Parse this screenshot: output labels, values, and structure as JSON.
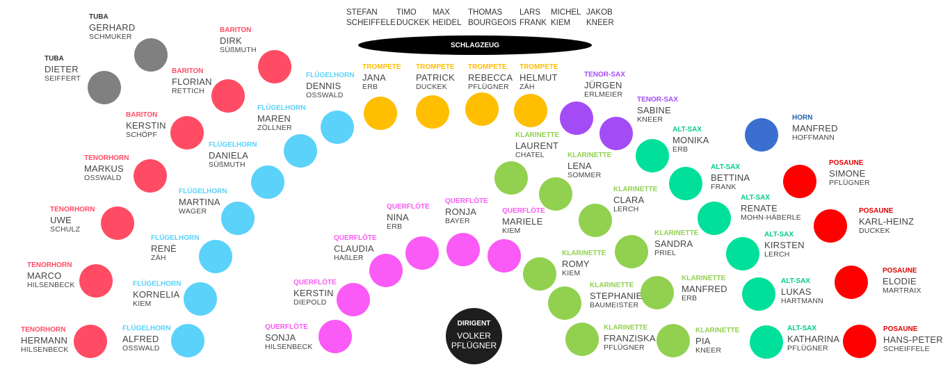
{
  "colors": {
    "tuba": "#808080",
    "bariton": "#ff4c64",
    "tenorhorn": "#ff4c64",
    "fluegelhorn": "#5ad2fa",
    "trompete": "#ffbe00",
    "tenorsax": "#a34cf5",
    "altsax": "#00e09a",
    "klarinette": "#92d050",
    "querfloete": "#fa5af5",
    "horn": "#3a6fd0",
    "posaune": "#ff0000",
    "bariton_text": "#ff4c64",
    "tenorhorn_text": "#ff4c64",
    "fluegelhorn_text": "#5ad2fa",
    "trompete_text": "#ffbe00",
    "tenorsax_text": "#a34cf5",
    "altsax_text": "#00cc8a",
    "klarinette_text": "#92d050",
    "querfloete_text": "#fa5af5",
    "horn_text": "#1f5fb0",
    "posaune_text": "#e00000",
    "tuba_text": "#333333"
  },
  "drums": {
    "label": "SCHLAGZEUG",
    "players": [
      {
        "first": "STEFAN",
        "last": "SCHEIFFELE"
      },
      {
        "first": "TIMO",
        "last": "DUCKEK"
      },
      {
        "first": "MAX",
        "last": "HEIDEL"
      },
      {
        "first": "THOMAS",
        "last": "BOURGEOIS"
      },
      {
        "first": "LARS",
        "last": "FRANK"
      },
      {
        "first": "MICHEL",
        "last": "KIEM"
      },
      {
        "first": "JAKOB",
        "last": "KNEER"
      }
    ]
  },
  "conductor": {
    "role": "DIRIGENT",
    "first": "VOLKER",
    "last": "PFLÜGNER"
  },
  "members": [
    {
      "instrument": "TUBA",
      "first": "GERHARD",
      "last": "SCHMUKER",
      "group": "tuba"
    },
    {
      "instrument": "TUBA",
      "first": "DIETER",
      "last": "SEIFFERT",
      "group": "tuba"
    },
    {
      "instrument": "BARITON",
      "first": "DIRK",
      "last": "SÜßMUTH",
      "group": "bariton"
    },
    {
      "instrument": "BARITON",
      "first": "FLORIAN",
      "last": "RETTICH",
      "group": "bariton"
    },
    {
      "instrument": "BARITON",
      "first": "KERSTIN",
      "last": "SCHÖPF",
      "group": "bariton"
    },
    {
      "instrument": "TENORHORN",
      "first": "MARKUS",
      "last": "OSSWALD",
      "group": "tenorhorn"
    },
    {
      "instrument": "TENORHORN",
      "first": "UWE",
      "last": "SCHULZ",
      "group": "tenorhorn"
    },
    {
      "instrument": "TENORHORN",
      "first": "MARCO",
      "last": "HILSENBECK",
      "group": "tenorhorn"
    },
    {
      "instrument": "TENORHORN",
      "first": "HERMANN",
      "last": "HILSENBECK",
      "group": "tenorhorn"
    },
    {
      "instrument": "FLÜGELHORN",
      "first": "DENNIS",
      "last": "OSSWALD",
      "group": "fluegelhorn"
    },
    {
      "instrument": "FLÜGELHORN",
      "first": "MAREN",
      "last": "ZÖLLNER",
      "group": "fluegelhorn"
    },
    {
      "instrument": "FLÜGELHORN",
      "first": "DANIELA",
      "last": "SÜßMUTH",
      "group": "fluegelhorn"
    },
    {
      "instrument": "FLÜGELHORN",
      "first": "MARTINA",
      "last": "WAGER",
      "group": "fluegelhorn"
    },
    {
      "instrument": "FLÜGELHORN",
      "first": "RENÈ",
      "last": "ZÄH",
      "group": "fluegelhorn"
    },
    {
      "instrument": "FLÜGELHORN",
      "first": "KORNELIA",
      "last": "KIEM",
      "group": "fluegelhorn"
    },
    {
      "instrument": "FLÜGELHORN",
      "first": "ALFRED",
      "last": "OSSWALD",
      "group": "fluegelhorn"
    },
    {
      "instrument": "TROMPETE",
      "first": "JANA",
      "last": "ERB",
      "group": "trompete"
    },
    {
      "instrument": "TROMPETE",
      "first": "PATRICK",
      "last": "DUCKEK",
      "group": "trompete"
    },
    {
      "instrument": "TROMPETE",
      "first": "REBECCA",
      "last": "PFLÜGNER",
      "group": "trompete"
    },
    {
      "instrument": "TROMPETE",
      "first": "HELMUT",
      "last": "ZÄH",
      "group": "trompete"
    },
    {
      "instrument": "TENOR-SAX",
      "first": "JÜRGEN",
      "last": "ERLMEIER",
      "group": "tenorsax"
    },
    {
      "instrument": "TENOR-SAX",
      "first": "SABINE",
      "last": "KNEER",
      "group": "tenorsax"
    },
    {
      "instrument": "ALT-SAX",
      "first": "MONIKA",
      "last": "ERB",
      "group": "altsax"
    },
    {
      "instrument": "ALT-SAX",
      "first": "BETTINA",
      "last": "FRANK",
      "group": "altsax"
    },
    {
      "instrument": "ALT-SAX",
      "first": "RENATE",
      "last": "MOHN-HÄBERLE",
      "group": "altsax"
    },
    {
      "instrument": "ALT-SAX",
      "first": "KIRSTEN",
      "last": "LERCH",
      "group": "altsax"
    },
    {
      "instrument": "ALT-SAX",
      "first": "LUKAS",
      "last": "HARTMANN",
      "group": "altsax"
    },
    {
      "instrument": "ALT-SAX",
      "first": "KATHARINA",
      "last": "PFLÜGNER",
      "group": "altsax"
    },
    {
      "instrument": "HORN",
      "first": "MANFRED",
      "last": "HOFFMANN",
      "group": "horn"
    },
    {
      "instrument": "POSAUNE",
      "first": "SIMONE",
      "last": "PFLÜGNER",
      "group": "posaune"
    },
    {
      "instrument": "POSAUNE",
      "first": "KARL-HEINZ",
      "last": "DUCKEK",
      "group": "posaune"
    },
    {
      "instrument": "POSAUNE",
      "first": "ELODIE",
      "last": "MARTRAIX",
      "group": "posaune"
    },
    {
      "instrument": "POSAUNE",
      "first": "HANS-PETER",
      "last": "SCHEIFFELE",
      "group": "posaune"
    },
    {
      "instrument": "KLARINETTE",
      "first": "LAURENT",
      "last": "CHATEL",
      "group": "klarinette"
    },
    {
      "instrument": "KLARINETTE",
      "first": "LENA",
      "last": "SOMMER",
      "group": "klarinette"
    },
    {
      "instrument": "KLARINETTE",
      "first": "CLARA",
      "last": "LERCH",
      "group": "klarinette"
    },
    {
      "instrument": "KLARINETTE",
      "first": "SANDRA",
      "last": "PRIEL",
      "group": "klarinette"
    },
    {
      "instrument": "KLARINETTE",
      "first": "ROMY",
      "last": "KIEM",
      "group": "klarinette"
    },
    {
      "instrument": "KLARINETTE",
      "first": "STEPHANIE",
      "last": "BAUMEISTER",
      "group": "klarinette"
    },
    {
      "instrument": "KLARINETTE",
      "first": "MANFRED",
      "last": "ERB",
      "group": "klarinette"
    },
    {
      "instrument": "KLARINETTE",
      "first": "FRANZISKA",
      "last": "PFLÜGNER",
      "group": "klarinette"
    },
    {
      "instrument": "KLARINETTE",
      "first": "PIA",
      "last": "KNEER",
      "group": "klarinette"
    },
    {
      "instrument": "QUERFLÖTE",
      "first": "NINA",
      "last": "ERB",
      "group": "querfloete"
    },
    {
      "instrument": "QUERFLÖTE",
      "first": "RONJA",
      "last": "BAYER",
      "group": "querfloete"
    },
    {
      "instrument": "QUERFLÖTE",
      "first": "MARIELE",
      "last": "KIEM",
      "group": "querfloete"
    },
    {
      "instrument": "QUERFLÖTE",
      "first": "CLAUDIA",
      "last": "HAßLER",
      "group": "querfloete"
    },
    {
      "instrument": "QUERFLÖTE",
      "first": "KERSTIN",
      "last": "DIEPOLD",
      "group": "querfloete"
    },
    {
      "instrument": "QUERFLÖTE",
      "first": "SONJA",
      "last": "HILSENBECK",
      "group": "querfloete"
    }
  ]
}
